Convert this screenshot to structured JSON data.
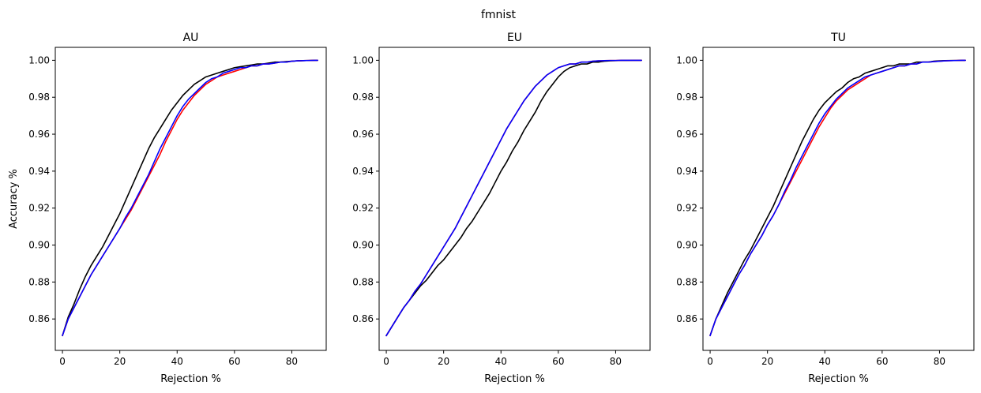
{
  "figure": {
    "suptitle": "fmnist"
  },
  "colors": {
    "black": "#000000",
    "red": "#ff0000",
    "blue": "#0000ff"
  },
  "chart_data": [
    {
      "type": "line",
      "title": "AU",
      "xlabel": "Rejection %",
      "ylabel": "Accuracy %",
      "xlim": [
        -2.5,
        92
      ],
      "ylim": [
        0.843,
        1.007
      ],
      "xticks": [
        0,
        20,
        40,
        60,
        80
      ],
      "yticks": [
        0.86,
        0.88,
        0.9,
        0.92,
        0.94,
        0.96,
        0.98,
        1.0
      ],
      "ytick_labels": [
        "0.86",
        "0.88",
        "0.90",
        "0.92",
        "0.94",
        "0.96",
        "0.98",
        "1.00"
      ],
      "legend": "none",
      "series": [
        {
          "color": "#000000",
          "x": [
            0,
            2,
            4,
            6,
            8,
            10,
            12,
            14,
            16,
            18,
            20,
            22,
            24,
            26,
            28,
            30,
            32,
            34,
            36,
            38,
            40,
            42,
            44,
            46,
            48,
            50,
            52,
            54,
            56,
            58,
            60,
            62,
            64,
            66,
            68,
            70,
            72,
            74,
            76,
            78,
            80,
            82,
            84,
            86,
            88,
            89
          ],
          "y": [
            0.851,
            0.861,
            0.868,
            0.876,
            0.883,
            0.889,
            0.894,
            0.899,
            0.905,
            0.911,
            0.917,
            0.924,
            0.931,
            0.938,
            0.945,
            0.952,
            0.958,
            0.963,
            0.968,
            0.973,
            0.977,
            0.981,
            0.984,
            0.987,
            0.989,
            0.991,
            0.992,
            0.993,
            0.994,
            0.995,
            0.996,
            0.9965,
            0.997,
            0.9975,
            0.998,
            0.998,
            0.9985,
            0.999,
            0.999,
            0.9993,
            0.9995,
            0.9997,
            0.9998,
            0.9999,
            1.0,
            1.0
          ]
        },
        {
          "color": "#ff0000",
          "x": [
            0,
            2,
            4,
            6,
            8,
            10,
            12,
            14,
            16,
            18,
            20,
            22,
            24,
            26,
            28,
            30,
            32,
            34,
            36,
            38,
            40,
            42,
            44,
            46,
            48,
            50,
            52,
            54,
            56,
            58,
            60,
            62,
            64,
            66,
            68,
            70,
            72,
            74,
            76,
            78,
            80,
            82,
            84,
            86,
            88,
            89
          ],
          "y": [
            0.851,
            0.86,
            0.866,
            0.872,
            0.878,
            0.884,
            0.889,
            0.894,
            0.899,
            0.904,
            0.909,
            0.914,
            0.919,
            0.925,
            0.931,
            0.937,
            0.943,
            0.949,
            0.956,
            0.962,
            0.968,
            0.973,
            0.977,
            0.981,
            0.984,
            0.987,
            0.989,
            0.991,
            0.992,
            0.993,
            0.994,
            0.995,
            0.996,
            0.997,
            0.997,
            0.998,
            0.998,
            0.9985,
            0.999,
            0.999,
            0.9995,
            0.9997,
            0.9998,
            0.9999,
            1.0,
            1.0
          ]
        },
        {
          "color": "#0000ff",
          "x": [
            0,
            2,
            4,
            6,
            8,
            10,
            12,
            14,
            16,
            18,
            20,
            22,
            24,
            26,
            28,
            30,
            32,
            34,
            36,
            38,
            40,
            42,
            44,
            46,
            48,
            50,
            52,
            54,
            56,
            58,
            60,
            62,
            64,
            66,
            68,
            70,
            72,
            74,
            76,
            78,
            80,
            82,
            84,
            86,
            88,
            89
          ],
          "y": [
            0.851,
            0.86,
            0.866,
            0.872,
            0.878,
            0.884,
            0.889,
            0.894,
            0.899,
            0.904,
            0.909,
            0.915,
            0.92,
            0.926,
            0.932,
            0.938,
            0.945,
            0.952,
            0.958,
            0.964,
            0.97,
            0.975,
            0.979,
            0.982,
            0.985,
            0.988,
            0.99,
            0.991,
            0.993,
            0.994,
            0.995,
            0.996,
            0.996,
            0.997,
            0.997,
            0.998,
            0.998,
            0.9985,
            0.999,
            0.999,
            0.9995,
            0.9997,
            0.9998,
            0.9999,
            1.0,
            1.0
          ]
        }
      ]
    },
    {
      "type": "line",
      "title": "EU",
      "xlabel": "Rejection %",
      "ylabel": "",
      "xlim": [
        -2.5,
        92
      ],
      "ylim": [
        0.843,
        1.007
      ],
      "xticks": [
        0,
        20,
        40,
        60,
        80
      ],
      "yticks": [
        0.86,
        0.88,
        0.9,
        0.92,
        0.94,
        0.96,
        0.98,
        1.0
      ],
      "ytick_labels": [
        "0.86",
        "0.88",
        "0.90",
        "0.92",
        "0.94",
        "0.96",
        "0.98",
        "1.00"
      ],
      "legend": "none",
      "series": [
        {
          "color": "#000000",
          "x": [
            0,
            2,
            4,
            6,
            8,
            10,
            12,
            14,
            16,
            18,
            20,
            22,
            24,
            26,
            28,
            30,
            32,
            34,
            36,
            38,
            40,
            42,
            44,
            46,
            48,
            50,
            52,
            54,
            56,
            58,
            60,
            62,
            64,
            66,
            68,
            70,
            72,
            74,
            76,
            78,
            80,
            82,
            84,
            86,
            88,
            89
          ],
          "y": [
            0.851,
            0.856,
            0.861,
            0.866,
            0.87,
            0.874,
            0.878,
            0.881,
            0.885,
            0.889,
            0.892,
            0.896,
            0.9,
            0.904,
            0.909,
            0.913,
            0.918,
            0.923,
            0.928,
            0.934,
            0.94,
            0.945,
            0.951,
            0.956,
            0.962,
            0.967,
            0.972,
            0.978,
            0.983,
            0.987,
            0.991,
            0.994,
            0.996,
            0.997,
            0.998,
            0.998,
            0.999,
            0.999,
            0.9995,
            0.9997,
            0.9998,
            0.9999,
            0.9999,
            1.0,
            1.0,
            1.0
          ]
        },
        {
          "color": "#ff0000",
          "x": [
            0,
            2,
            4,
            6,
            8,
            10,
            12,
            14,
            16,
            18,
            20,
            22,
            24,
            26,
            28,
            30,
            32,
            34,
            36,
            38,
            40,
            42,
            44,
            46,
            48,
            50,
            52,
            54,
            56,
            58,
            60,
            62,
            64,
            66,
            68,
            70,
            72,
            74,
            76,
            78,
            80,
            82,
            84,
            86,
            88,
            89
          ],
          "y": [
            0.851,
            0.856,
            0.861,
            0.866,
            0.87,
            0.875,
            0.879,
            0.884,
            0.889,
            0.894,
            0.899,
            0.904,
            0.909,
            0.915,
            0.921,
            0.927,
            0.933,
            0.939,
            0.945,
            0.951,
            0.957,
            0.963,
            0.968,
            0.973,
            0.978,
            0.982,
            0.986,
            0.989,
            0.992,
            0.994,
            0.996,
            0.997,
            0.998,
            0.998,
            0.999,
            0.999,
            0.9995,
            0.9997,
            0.9998,
            0.9999,
            0.9999,
            1.0,
            1.0,
            1.0,
            1.0,
            1.0
          ]
        },
        {
          "color": "#0000ff",
          "x": [
            0,
            2,
            4,
            6,
            8,
            10,
            12,
            14,
            16,
            18,
            20,
            22,
            24,
            26,
            28,
            30,
            32,
            34,
            36,
            38,
            40,
            42,
            44,
            46,
            48,
            50,
            52,
            54,
            56,
            58,
            60,
            62,
            64,
            66,
            68,
            70,
            72,
            74,
            76,
            78,
            80,
            82,
            84,
            86,
            88,
            89
          ],
          "y": [
            0.851,
            0.856,
            0.861,
            0.866,
            0.87,
            0.875,
            0.879,
            0.884,
            0.889,
            0.894,
            0.899,
            0.904,
            0.909,
            0.915,
            0.921,
            0.927,
            0.933,
            0.939,
            0.945,
            0.951,
            0.957,
            0.963,
            0.968,
            0.973,
            0.978,
            0.982,
            0.986,
            0.989,
            0.992,
            0.994,
            0.996,
            0.997,
            0.998,
            0.998,
            0.999,
            0.999,
            0.9995,
            0.9997,
            0.9998,
            0.9999,
            0.9999,
            1.0,
            1.0,
            1.0,
            1.0,
            1.0
          ]
        }
      ]
    },
    {
      "type": "line",
      "title": "TU",
      "xlabel": "Rejection %",
      "ylabel": "",
      "xlim": [
        -2.5,
        92
      ],
      "ylim": [
        0.843,
        1.007
      ],
      "xticks": [
        0,
        20,
        40,
        60,
        80
      ],
      "yticks": [
        0.86,
        0.88,
        0.9,
        0.92,
        0.94,
        0.96,
        0.98,
        1.0
      ],
      "ytick_labels": [
        "0.86",
        "0.88",
        "0.90",
        "0.92",
        "0.94",
        "0.96",
        "0.98",
        "1.00"
      ],
      "legend": "none",
      "series": [
        {
          "color": "#000000",
          "x": [
            0,
            2,
            4,
            6,
            8,
            10,
            12,
            14,
            16,
            18,
            20,
            22,
            24,
            26,
            28,
            30,
            32,
            34,
            36,
            38,
            40,
            42,
            44,
            46,
            48,
            50,
            52,
            54,
            56,
            58,
            60,
            62,
            64,
            66,
            68,
            70,
            72,
            74,
            76,
            78,
            80,
            82,
            84,
            86,
            88,
            89
          ],
          "y": [
            0.851,
            0.86,
            0.867,
            0.874,
            0.88,
            0.886,
            0.892,
            0.897,
            0.903,
            0.909,
            0.915,
            0.921,
            0.928,
            0.935,
            0.942,
            0.949,
            0.956,
            0.962,
            0.968,
            0.973,
            0.977,
            0.98,
            0.983,
            0.985,
            0.988,
            0.99,
            0.991,
            0.993,
            0.994,
            0.995,
            0.996,
            0.997,
            0.997,
            0.998,
            0.998,
            0.998,
            0.999,
            0.999,
            0.999,
            0.9995,
            0.9997,
            0.9998,
            0.9999,
            0.9999,
            1.0,
            1.0
          ]
        },
        {
          "color": "#ff0000",
          "x": [
            0,
            2,
            4,
            6,
            8,
            10,
            12,
            14,
            16,
            18,
            20,
            22,
            24,
            26,
            28,
            30,
            32,
            34,
            36,
            38,
            40,
            42,
            44,
            46,
            48,
            50,
            52,
            54,
            56,
            58,
            60,
            62,
            64,
            66,
            68,
            70,
            72,
            74,
            76,
            78,
            80,
            82,
            84,
            86,
            88,
            89
          ],
          "y": [
            0.851,
            0.86,
            0.866,
            0.872,
            0.878,
            0.884,
            0.889,
            0.895,
            0.9,
            0.905,
            0.911,
            0.916,
            0.922,
            0.928,
            0.934,
            0.94,
            0.946,
            0.952,
            0.958,
            0.964,
            0.969,
            0.974,
            0.978,
            0.981,
            0.984,
            0.986,
            0.988,
            0.99,
            0.992,
            0.993,
            0.994,
            0.995,
            0.996,
            0.997,
            0.997,
            0.998,
            0.998,
            0.999,
            0.999,
            0.9993,
            0.9995,
            0.9997,
            0.9998,
            0.9999,
            1.0,
            1.0
          ]
        },
        {
          "color": "#0000ff",
          "x": [
            0,
            2,
            4,
            6,
            8,
            10,
            12,
            14,
            16,
            18,
            20,
            22,
            24,
            26,
            28,
            30,
            32,
            34,
            36,
            38,
            40,
            42,
            44,
            46,
            48,
            50,
            52,
            54,
            56,
            58,
            60,
            62,
            64,
            66,
            68,
            70,
            72,
            74,
            76,
            78,
            80,
            82,
            84,
            86,
            88,
            89
          ],
          "y": [
            0.851,
            0.86,
            0.866,
            0.872,
            0.878,
            0.884,
            0.889,
            0.895,
            0.9,
            0.905,
            0.911,
            0.916,
            0.922,
            0.929,
            0.935,
            0.942,
            0.948,
            0.954,
            0.96,
            0.966,
            0.971,
            0.975,
            0.979,
            0.982,
            0.985,
            0.987,
            0.989,
            0.991,
            0.992,
            0.993,
            0.994,
            0.995,
            0.996,
            0.997,
            0.997,
            0.998,
            0.998,
            0.999,
            0.999,
            0.9993,
            0.9995,
            0.9997,
            0.9998,
            0.9999,
            1.0,
            1.0
          ]
        }
      ]
    }
  ]
}
